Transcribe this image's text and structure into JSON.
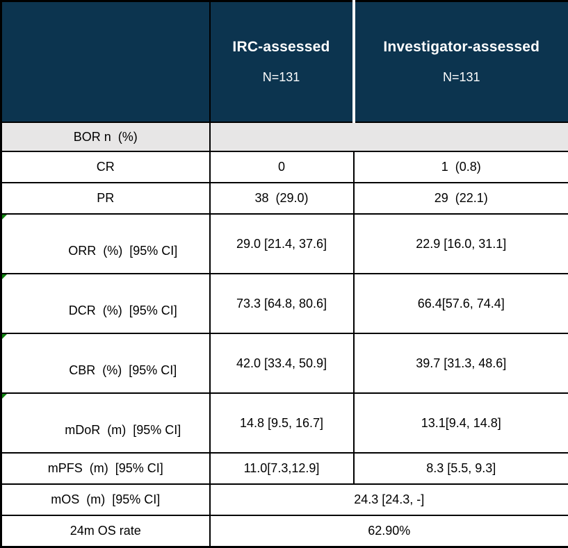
{
  "colors": {
    "header_bg": "#0c344f",
    "header_text": "#ffffff",
    "section_bg": "#e7e6e6",
    "border_color": "#000000",
    "cell_bg": "#ffffff",
    "text_color": "#000000",
    "flag_green": "#0e820e",
    "header_divider": "#ffffff"
  },
  "header": {
    "corner_label": "",
    "columns": [
      {
        "label": "IRC-assessed",
        "n": "N=131"
      },
      {
        "label": "Investigator-assessed",
        "n": "N=131"
      }
    ]
  },
  "rows": [
    {
      "label": "BOR n  (%)",
      "type": "section",
      "flag": false
    },
    {
      "label": "CR",
      "irc": "0",
      "inv": "1  (0.8)",
      "flag": false
    },
    {
      "label": "PR",
      "irc": "38  (29.0)",
      "inv": "29  (22.1)",
      "flag": false
    },
    {
      "label": "ORR  (%)  [95% CI]",
      "irc": "29.0 [21.4, 37.6]",
      "inv": "22.9 [16.0, 31.1]",
      "flag": true
    },
    {
      "label": "DCR  (%)  [95% CI]",
      "irc": "73.3 [64.8, 80.6]",
      "inv": "66.4[57.6, 74.4]",
      "flag": true
    },
    {
      "label": "CBR  (%)  [95% CI]",
      "irc": "42.0 [33.4, 50.9]",
      "inv": "39.7 [31.3, 48.6]",
      "flag": true
    },
    {
      "label": "mDoR  (m)  [95% CI]",
      "irc": "14.8 [9.5, 16.7]",
      "inv": "13.1[9.4, 14.8]",
      "flag": true
    },
    {
      "label": "mPFS  (m)  [95% CI]",
      "irc": "11.0[7.3,12.9]",
      "inv": "8.3 [5.5, 9.3]",
      "flag": false
    },
    {
      "label": "mOS  (m)  [95% CI]",
      "merged": "24.3 [24.3, -]",
      "flag": false
    },
    {
      "label": "24m OS rate",
      "merged": "62.90%",
      "flag": false
    }
  ]
}
